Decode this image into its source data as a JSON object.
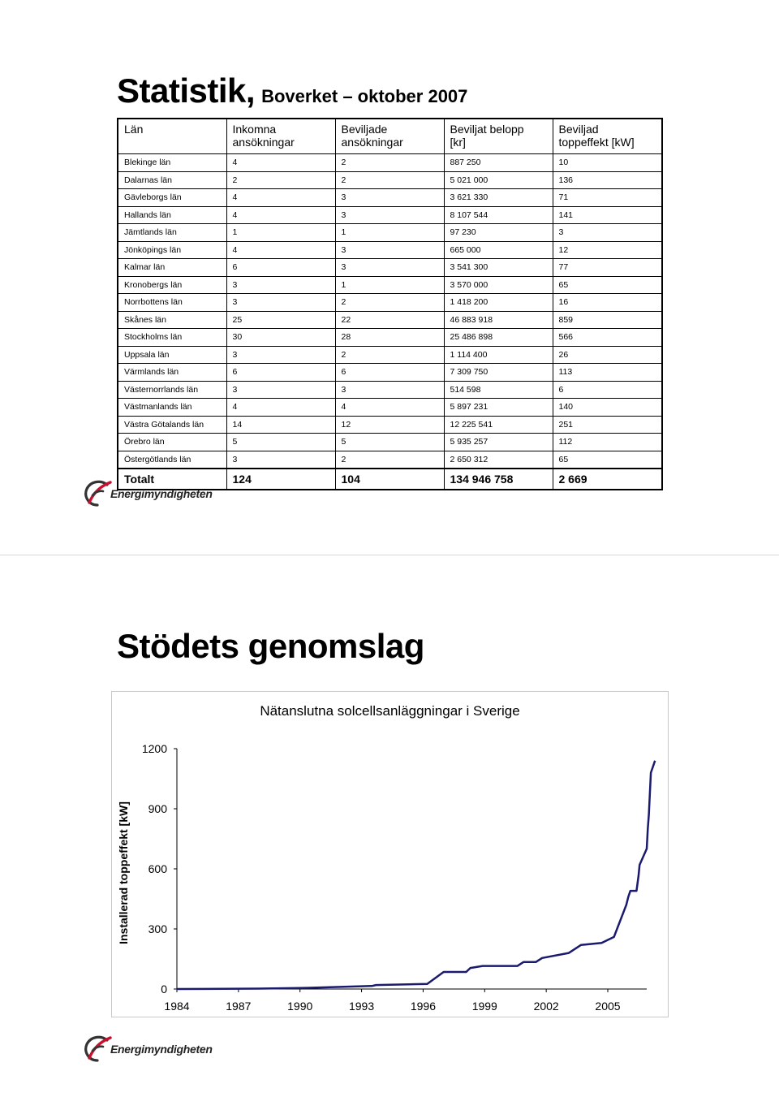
{
  "slide1": {
    "title": "Statistik,",
    "subtitle": "Boverket – oktober 2007",
    "table": {
      "headers": [
        "Län",
        "Inkomna\nansökningar",
        "Beviljade\nansökningar",
        "Beviljat belopp\n[kr]",
        "Beviljad\ntoppeffekt [kW]"
      ],
      "rows": [
        [
          "Blekinge län",
          "4",
          "2",
          "887 250",
          "10"
        ],
        [
          "Dalarnas län",
          "2",
          "2",
          "5 021 000",
          "136"
        ],
        [
          "Gävleborgs län",
          "4",
          "3",
          "3 621 330",
          "71"
        ],
        [
          "Hallands län",
          "4",
          "3",
          "8 107 544",
          "141"
        ],
        [
          "Jämtlands län",
          "1",
          "1",
          "97 230",
          "3"
        ],
        [
          "Jönköpings län",
          "4",
          "3",
          "665 000",
          "12"
        ],
        [
          "Kalmar län",
          "6",
          "3",
          "3 541 300",
          "77"
        ],
        [
          "Kronobergs län",
          "3",
          "1",
          "3 570 000",
          "65"
        ],
        [
          "Norrbottens län",
          "3",
          "2",
          "1 418 200",
          "16"
        ],
        [
          "Skånes län",
          "25",
          "22",
          "46 883 918",
          "859"
        ],
        [
          "Stockholms län",
          "30",
          "28",
          "25 486 898",
          "566"
        ],
        [
          "Uppsala län",
          "3",
          "2",
          "1 114 400",
          "26"
        ],
        [
          "Värmlands län",
          "6",
          "6",
          "7 309 750",
          "113"
        ],
        [
          "Västernorrlands län",
          "3",
          "3",
          "514 598",
          "6"
        ],
        [
          "Västmanlands län",
          "4",
          "4",
          "5 897 231",
          "140"
        ],
        [
          "Västra Götalands län",
          "14",
          "12",
          "12 225 541",
          "251"
        ],
        [
          "Örebro län",
          "5",
          "5",
          "5 935 257",
          "112"
        ],
        [
          "Östergötlands län",
          "3",
          "2",
          "2 650 312",
          "65"
        ]
      ],
      "total": [
        "Totalt",
        "124",
        "104",
        "134 946 758",
        "2 669"
      ]
    },
    "logo_text": "Energimyndigheten"
  },
  "slide2": {
    "title": "Stödets genomslag",
    "logo_text": "Energimyndigheten"
  },
  "colors": {
    "line": "#1a1a6e",
    "logo_red": "#c8102e",
    "logo_dark": "#333333"
  },
  "chart_data": {
    "type": "line",
    "title": "Nätanslutna solcellsanläggningar i Sverige",
    "ylabel": "Installerad toppeffekt [kW]",
    "xlabel": "",
    "xlim": [
      1984,
      2007.3
    ],
    "ylim": [
      0,
      1200
    ],
    "xticks": [
      1984,
      1987,
      1990,
      1993,
      1996,
      1999,
      2002,
      2005
    ],
    "yticks": [
      0,
      300,
      600,
      900,
      1200
    ],
    "grid": false,
    "series": [
      {
        "x": [
          1984,
          1988,
          1990,
          1993.5,
          1993.7,
          1996.2,
          1997,
          1998.1,
          1998.3,
          1998.9,
          2000.6,
          2000.9,
          2001.5,
          2001.8,
          2003.1,
          2003.7,
          2004.7,
          2005.3,
          2005.9,
          2006.0,
          2006.1,
          2006.4,
          2006.5,
          2006.55,
          2006.9,
          2006.95,
          2007.0,
          2007.1,
          2007.3
        ],
        "y": [
          0,
          2,
          5,
          15,
          20,
          25,
          85,
          85,
          105,
          115,
          115,
          135,
          135,
          155,
          180,
          220,
          230,
          260,
          420,
          460,
          490,
          490,
          565,
          620,
          700,
          800,
          870,
          1080,
          1140
        ]
      }
    ]
  }
}
